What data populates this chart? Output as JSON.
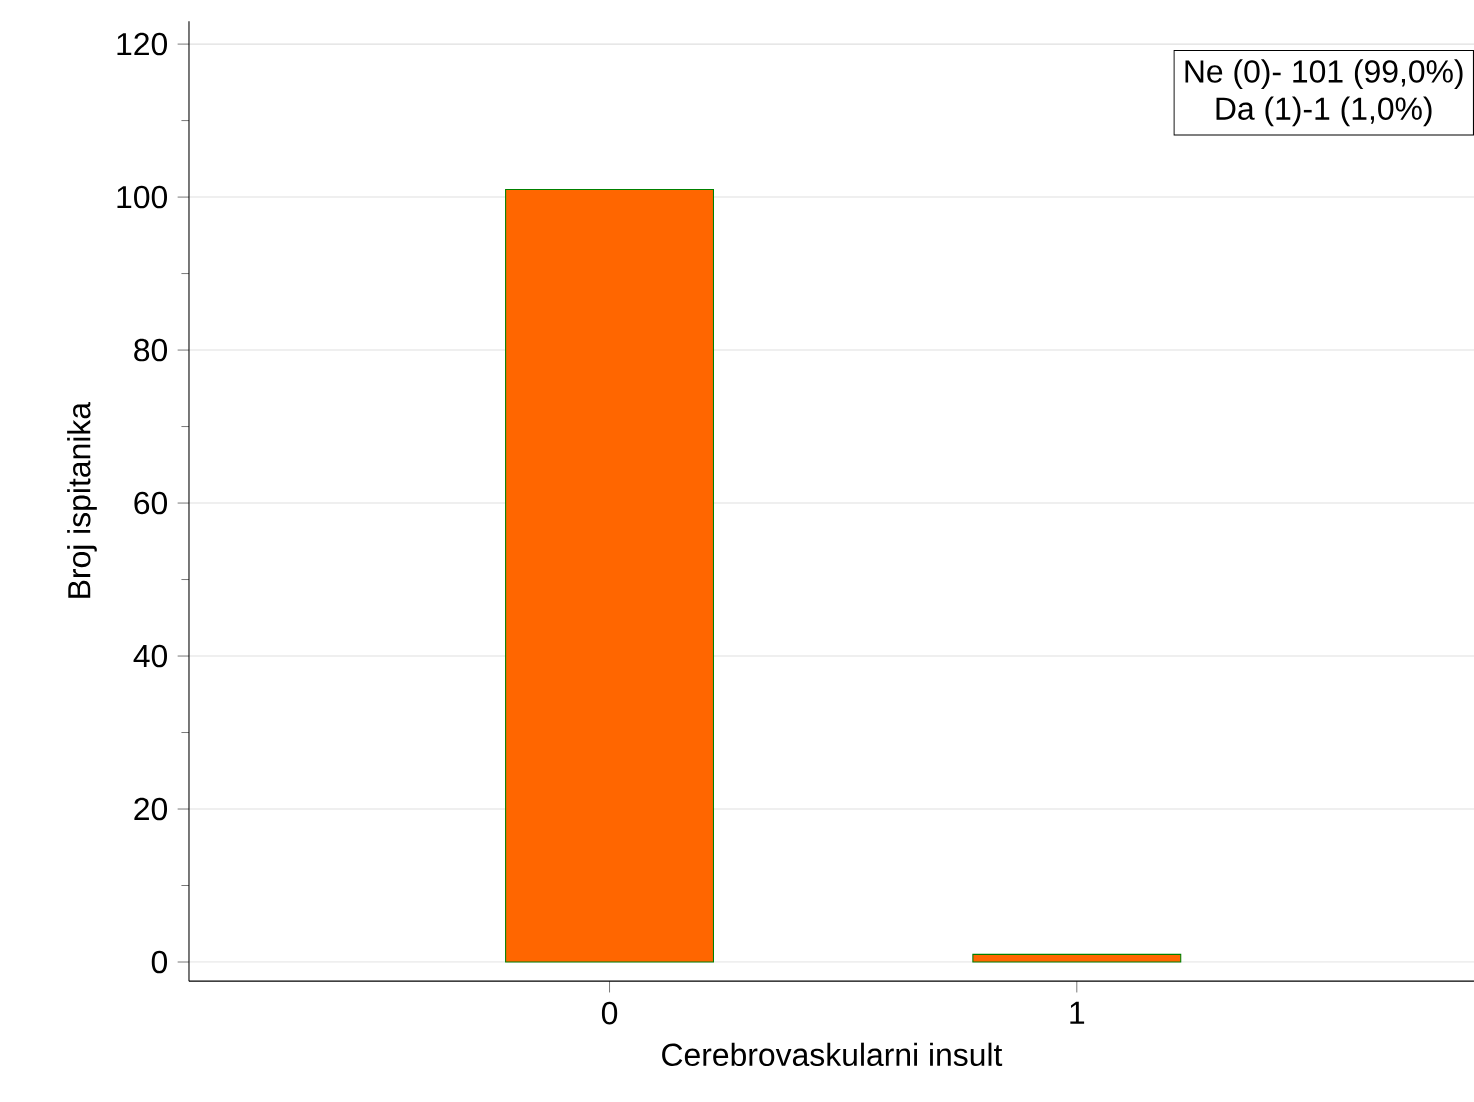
{
  "chart_data": {
    "type": "bar",
    "xlabel": "Cerebrovaskularni insult",
    "ylabel": "Broj ispitanika",
    "categories": [
      "0",
      "1"
    ],
    "values": [
      101,
      1
    ],
    "color": "#ff6600",
    "ylim": [
      -2.5,
      123
    ],
    "yticks": [
      0,
      20,
      40,
      60,
      80,
      100,
      120
    ],
    "grid": "y",
    "annotations": [
      "Ne (0)- 101 (99,0%)",
      "Da (1)-1 (1,0%)"
    ]
  }
}
